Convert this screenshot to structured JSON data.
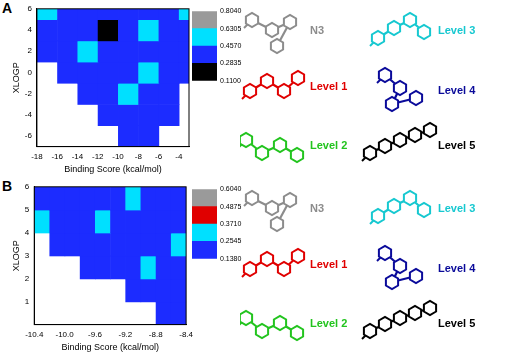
{
  "chart_data": [
    {
      "type": "heatmap",
      "panel": "A",
      "x_label": "Binding Score (kcal/mol)",
      "y_label": "XLOGP",
      "xlim": [
        -18,
        -3
      ],
      "xticks": [
        -18,
        -16,
        -14,
        -12,
        -10,
        -8,
        -6,
        -4
      ],
      "ylim": [
        -7,
        6
      ],
      "yticks": [
        -6,
        -4,
        -2,
        0,
        2,
        4,
        6
      ],
      "grid": false,
      "x_edges": [
        -18,
        -16,
        -14,
        -12,
        -10,
        -8,
        -6,
        -4,
        -3
      ],
      "y_edges": [
        -7,
        -5,
        -3,
        -1,
        1,
        3,
        5,
        6
      ],
      "z": [
        [
          null,
          null,
          null,
          null,
          0.35,
          0.35,
          null,
          null
        ],
        [
          null,
          null,
          null,
          0.35,
          0.35,
          0.35,
          0.35,
          null
        ],
        [
          null,
          null,
          0.35,
          0.35,
          0.52,
          0.35,
          0.35,
          null
        ],
        [
          null,
          0.35,
          0.35,
          0.35,
          0.35,
          0.52,
          0.35,
          0.35
        ],
        [
          0.35,
          0.35,
          0.52,
          0.35,
          0.35,
          0.35,
          0.35,
          0.35
        ],
        [
          0.35,
          0.35,
          0.35,
          0.2,
          0.35,
          0.52,
          0.35,
          0.35
        ],
        [
          0.52,
          0.35,
          0.35,
          0.35,
          0.35,
          0.35,
          0.35,
          0.52
        ]
      ],
      "colorbar": {
        "lim": [
          0.11,
          0.804
        ],
        "ticks": [
          {
            "value": 0.11,
            "label": "0.1100"
          },
          {
            "value": 0.2835,
            "label": "0.2835"
          },
          {
            "value": 0.457,
            "label": "0.4570"
          },
          {
            "value": 0.6305,
            "label": "0.6305"
          },
          {
            "value": 0.804,
            "label": "0.8040"
          }
        ],
        "colors": [
          "#000000",
          "#1c2cff",
          "#00e0ff",
          "#9a9a9a"
        ]
      },
      "structures": [
        {
          "label": "N3",
          "color": "#8c8c8c"
        },
        {
          "label": "Level 1",
          "color": "#e00000"
        },
        {
          "label": "Level 2",
          "color": "#22c41e"
        },
        {
          "label": "Level 3",
          "color": "#16c8d0"
        },
        {
          "label": "Level 4",
          "color": "#0a0a9a"
        },
        {
          "label": "Level 5",
          "color": "#000000"
        }
      ]
    },
    {
      "type": "heatmap",
      "panel": "B",
      "x_label": "Binding Score (kcal/mol)",
      "y_label": "XLOGP",
      "xlim": [
        -10.4,
        -8.4
      ],
      "xticks": [
        -10.4,
        {
          "value": -10,
          "label": "-10.0"
        },
        -9.6,
        -9.2,
        -8.8,
        -8.4
      ],
      "ylim": [
        0,
        6
      ],
      "yticks": [
        1,
        2,
        3,
        4,
        5,
        6
      ],
      "grid": false,
      "x_edges": [
        -10.4,
        -10.2,
        -10,
        -9.8,
        -9.6,
        -9.4,
        -9.2,
        -9,
        -8.8,
        -8.6,
        -8.4
      ],
      "y_edges": [
        0,
        1,
        2,
        3,
        4,
        5,
        6
      ],
      "z": [
        [
          null,
          null,
          null,
          null,
          null,
          null,
          null,
          null,
          0.2,
          0.2
        ],
        [
          null,
          null,
          null,
          null,
          null,
          null,
          0.2,
          0.2,
          0.2,
          0.2
        ],
        [
          null,
          null,
          null,
          0.2,
          0.2,
          0.2,
          0.2,
          0.3,
          0.2,
          0.2
        ],
        [
          null,
          0.2,
          0.2,
          0.2,
          0.2,
          0.2,
          0.2,
          0.2,
          0.2,
          0.3
        ],
        [
          0.3,
          0.2,
          0.2,
          0.2,
          0.3,
          0.2,
          0.2,
          0.2,
          0.2,
          0.2
        ],
        [
          0.2,
          0.2,
          0.2,
          0.2,
          0.2,
          0.2,
          0.3,
          0.2,
          0.2,
          0.2
        ]
      ],
      "colorbar": {
        "lim": [
          0.138,
          0.604
        ],
        "ticks": [
          {
            "value": 0.138,
            "label": "0.1380"
          },
          0.2545,
          {
            "value": 0.371,
            "label": "0.3710"
          },
          0.4875,
          {
            "value": 0.604,
            "label": "0.6040"
          }
        ],
        "colors": [
          "#1c2cff",
          "#00e0ff",
          "#e00000",
          "#9a9a9a"
        ]
      },
      "structures": [
        {
          "label": "N3",
          "color": "#8c8c8c"
        },
        {
          "label": "Level 1",
          "color": "#e00000"
        },
        {
          "label": "Level 2",
          "color": "#22c41e"
        },
        {
          "label": "Level 3",
          "color": "#16c8d0"
        },
        {
          "label": "Level 4",
          "color": "#0a0a9a"
        },
        {
          "label": "Level 5",
          "color": "#000000"
        }
      ]
    }
  ]
}
